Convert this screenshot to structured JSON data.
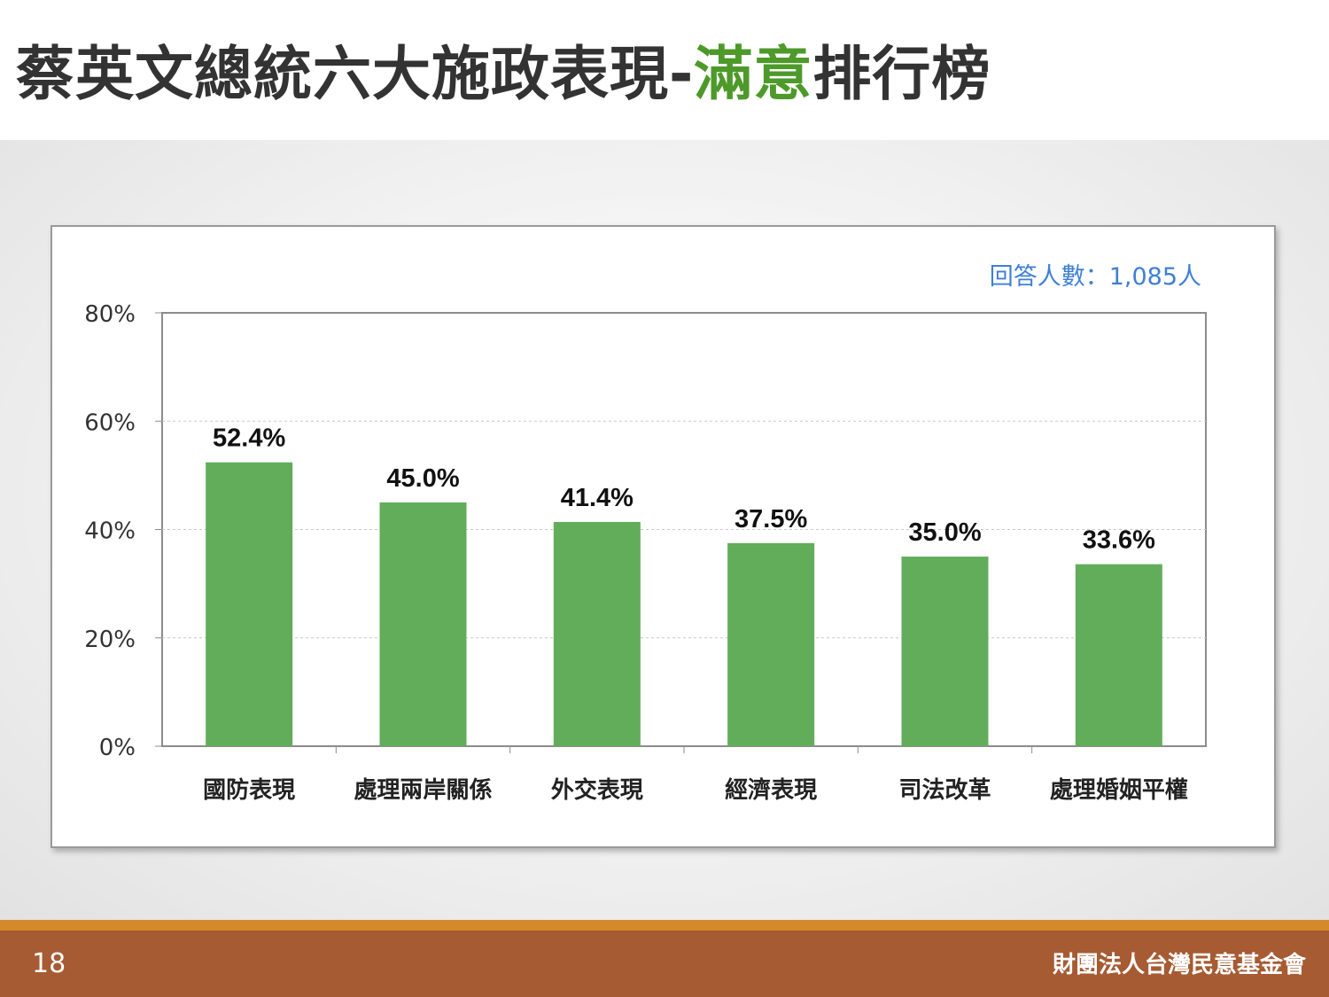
{
  "slide": {
    "title_main": "蔡英文總統六大施政表現-",
    "title_highlight": "滿意",
    "title_tail": "排行榜",
    "respondents_note": "回答人數：1,085人",
    "page_number": "18",
    "organization": "財團法人台灣民意基金會",
    "colors": {
      "title": "#333333",
      "highlight": "#4d9a2a",
      "bar": "#62ad5a",
      "note": "#3f7fd6",
      "footer": "#a65b33",
      "footer_accent": "#d48a2a"
    }
  },
  "chart_data": {
    "type": "bar",
    "categories": [
      "國防表現",
      "處理兩岸關係",
      "外交表現",
      "經濟表現",
      "司法改革",
      "處理婚姻平權"
    ],
    "values": [
      52.4,
      45.0,
      41.4,
      37.5,
      35.0,
      33.6
    ],
    "value_labels": [
      "52.4%",
      "45.0%",
      "41.4%",
      "37.5%",
      "35.0%",
      "33.6%"
    ],
    "yticks": [
      0,
      20,
      40,
      60,
      80
    ],
    "ytick_labels": [
      "0%",
      "20%",
      "40%",
      "60%",
      "80%"
    ],
    "ylim": [
      0,
      80
    ],
    "grid": true
  }
}
